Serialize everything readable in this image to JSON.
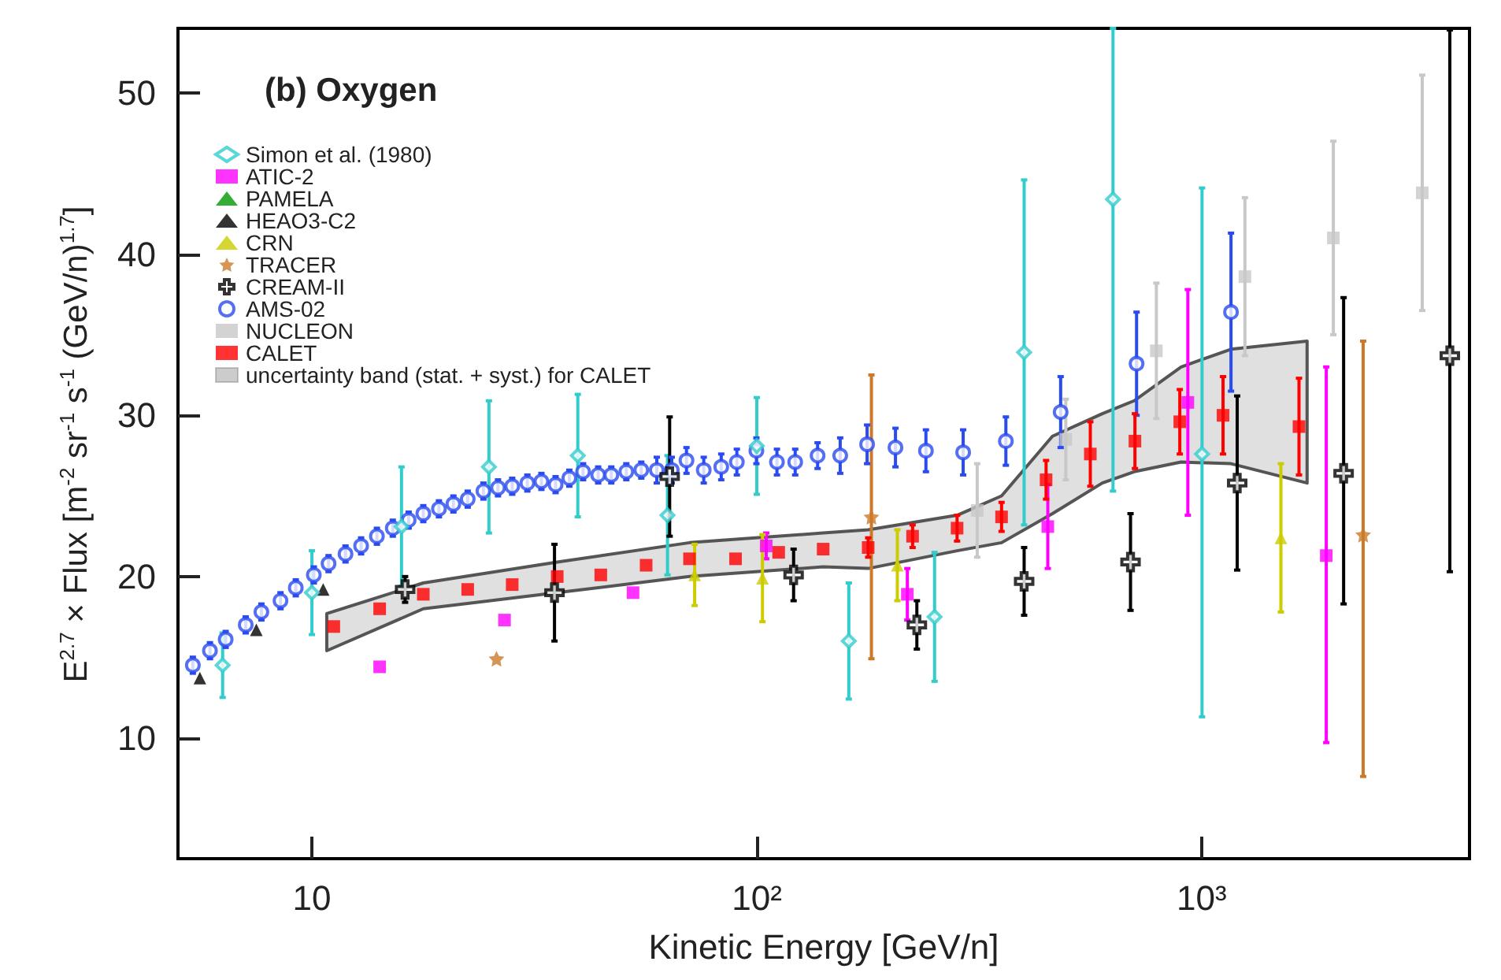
{
  "chart_data": {
    "type": "scatter",
    "title": "(b) Oxygen",
    "xlabel": "Kinetic Energy [GeV/n]",
    "ylabel": "E$^{2.7}$ × Flux [m$^{-2}$ sr$^{-1}$ s$^{-1}$ (GeV/n)$^{1.7}$]",
    "log": "x",
    "xlim": [
      5,
      4000
    ],
    "xticks": [
      {
        "value": 10,
        "label": "10"
      },
      {
        "value": 100,
        "label": "10²"
      },
      {
        "value": 1000,
        "label": "10³"
      }
    ],
    "ylim": [
      2.5,
      54
    ],
    "yticks": [
      10,
      20,
      30,
      40,
      50
    ],
    "grid": false,
    "legend": "top left",
    "series": [
      {
        "name": "Simon et al. (1980)",
        "color": "#33cccc",
        "marker": "diamond",
        "x": [
          6.3,
          10.0,
          15.9,
          25.0,
          39.6,
          63,
          100,
          161,
          251,
          399,
          632,
          1002
        ],
        "values": [
          14.5,
          19.0,
          23.1,
          26.8,
          27.5,
          23.8,
          28.1,
          16.0,
          17.5,
          33.9,
          43.4,
          27.6
        ],
        "errors": [
          2,
          2.6,
          3.7,
          4.1,
          3.8,
          3.7,
          3.0,
          3.6,
          4,
          10.7,
          [
            25.3,
            54
          ],
          [
            11.3,
            44.1
          ]
        ]
      },
      {
        "name": "ATIC-2",
        "color": "#ff00ff",
        "marker": "square",
        "x": [
          14.2,
          27.1,
          52.7,
          105,
          218,
          451,
          931,
          1906
        ],
        "values": [
          14.4,
          17.3,
          19.0,
          21.9,
          18.9,
          23.1,
          30.8,
          21.3
        ],
        "errors": [
          null,
          null,
          null,
          0.8,
          1.6,
          2.6,
          7,
          [
            9.7,
            33.0
          ]
        ]
      },
      {
        "name": "PAMELA",
        "color": "#009900",
        "marker": "triangle"
      },
      {
        "name": "HEAO3-C2",
        "color": "#000000",
        "marker": "triangle",
        "x": [
          5.6,
          7.5,
          10.6
        ],
        "values": [
          13.7,
          16.7,
          19.2
        ]
      },
      {
        "name": "CRN",
        "color": "#cccc00",
        "marker": "triangle",
        "x": [
          72.5,
          103,
          207,
          1507
        ],
        "values": [
          20.1,
          19.9,
          20.7,
          22.4
        ],
        "errors": [
          1.9,
          2.7,
          2.2,
          4.6
        ]
      },
      {
        "name": "TRACER",
        "color": "#cc7a29",
        "marker": "star",
        "x": [
          26,
          181,
          2307
        ],
        "values": [
          14.9,
          23.7,
          22.6
        ],
        "errors": [
          null,
          8.8,
          [
            7.6,
            34.6
          ]
        ]
      },
      {
        "name": "CREAM-II",
        "color": "#000000",
        "marker": "cross",
        "x": [
          16.2,
          35.1,
          63.7,
          121,
          229,
          399,
          692,
          1202,
          2085,
          3613
        ],
        "values": [
          19.2,
          19.0,
          26.2,
          20.1,
          17.0,
          19.7,
          20.9,
          25.8,
          26.4,
          33.7
        ],
        "errors": [
          0.8,
          3,
          3.7,
          1.6,
          1.5,
          2.1,
          3,
          5.4,
          [
            18.3,
            37.3
          ],
          [
            20.3,
            53.9
          ]
        ]
      },
      {
        "name": "AMS-02",
        "color": "#2a4bf0",
        "marker": "circle",
        "x": [
          5.4,
          5.9,
          6.4,
          7.1,
          7.7,
          8.5,
          9.2,
          10.1,
          10.9,
          11.9,
          12.9,
          14.0,
          15.2,
          16.5,
          17.8,
          19.3,
          20.8,
          22.4,
          24.3,
          26.2,
          28.2,
          30.5,
          32.8,
          35.3,
          37.9,
          40.7,
          44.0,
          47.1,
          50.9,
          55.0,
          59.6,
          64.4,
          69.5,
          76.0,
          83.2,
          90.2,
          99.8,
          111,
          122,
          137,
          154,
          177,
          205,
          240,
          291,
          363,
          482,
          714,
          1164
        ],
        "values": [
          14.5,
          15.4,
          16.1,
          17.0,
          17.8,
          18.5,
          19.3,
          20.1,
          20.8,
          21.4,
          21.9,
          22.5,
          23.0,
          23.5,
          23.9,
          24.2,
          24.5,
          24.8,
          25.3,
          25.5,
          25.6,
          25.8,
          25.9,
          25.7,
          26.1,
          26.5,
          26.3,
          26.3,
          26.5,
          26.6,
          26.6,
          26.6,
          27.2,
          26.6,
          26.8,
          27.1,
          27.8,
          27.1,
          27.1,
          27.5,
          27.5,
          28.2,
          28.0,
          27.8,
          27.7,
          28.4,
          30.2,
          33.2,
          36.4
        ],
        "errors": [
          0.5,
          0.5,
          0.5,
          0.5,
          0.5,
          0.5,
          0.5,
          0.5,
          0.5,
          0.5,
          0.5,
          0.5,
          0.5,
          0.5,
          0.5,
          0.5,
          0.5,
          0.5,
          0.5,
          0.5,
          0.5,
          0.5,
          0.5,
          0.5,
          0.5,
          0.5,
          0.5,
          0.5,
          0.5,
          0.5,
          0.8,
          0.8,
          0.8,
          0.8,
          0.8,
          0.8,
          0.8,
          0.8,
          0.8,
          0.8,
          1.1,
          1.2,
          1.2,
          1.3,
          1.4,
          1.5,
          2.2,
          3.2,
          4.9
        ]
      },
      {
        "name": "NUCLEON",
        "color": "#c8c8c8",
        "marker": "square",
        "x": [
          313,
          495,
          791,
          1251,
          1977,
          3132
        ],
        "values": [
          24.1,
          28.5,
          34.0,
          38.6,
          41.0,
          43.8
        ],
        "errors": [
          2.9,
          2.5,
          4.2,
          4.9,
          6,
          7.3
        ]
      },
      {
        "name": "CALET",
        "color": "#ff0000",
        "marker": "square",
        "x": [
          11.2,
          14.2,
          17.8,
          22.4,
          28.2,
          35.6,
          44.6,
          56.4,
          70.6,
          89.6,
          112,
          141,
          178,
          224,
          282,
          355,
          447,
          562,
          708,
          893,
          1117,
          1655
        ],
        "values": [
          16.9,
          18.0,
          18.9,
          19.2,
          19.5,
          20.0,
          20.1,
          20.7,
          21.1,
          21.1,
          21.5,
          21.7,
          21.8,
          22.5,
          23.0,
          23.7,
          26.0,
          27.6,
          28.4,
          29.6,
          30.0,
          29.3
        ],
        "errors": [
          null,
          null,
          null,
          null,
          null,
          null,
          null,
          null,
          null,
          null,
          null,
          null,
          0.6,
          0.7,
          0.8,
          0.9,
          1.2,
          2.0,
          1.7,
          2.0,
          2.4,
          3.0
        ]
      },
      {
        "name": "uncertainty band (stat. + syst.) for CALET",
        "type": "area",
        "color": "#555555",
        "x": [
          10.8,
          17.8,
          35.6,
          70.6,
          141,
          178,
          282,
          355,
          462,
          598,
          705,
          899,
          1164,
          1726
        ],
        "values": [
          null,
          null,
          null,
          null,
          null,
          null,
          null,
          null,
          null,
          null,
          null,
          null,
          null,
          null
        ],
        "lower": [
          15.4,
          18.0,
          19.0,
          20.0,
          20.6,
          20.5,
          21.6,
          22.1,
          23.9,
          25.8,
          26.5,
          27.1,
          27.0,
          25.8
        ],
        "upper": [
          17.7,
          19.6,
          20.9,
          22.1,
          22.7,
          22.9,
          23.8,
          25.0,
          28.7,
          30.1,
          30.9,
          33.0,
          34.1,
          34.6
        ]
      }
    ]
  }
}
